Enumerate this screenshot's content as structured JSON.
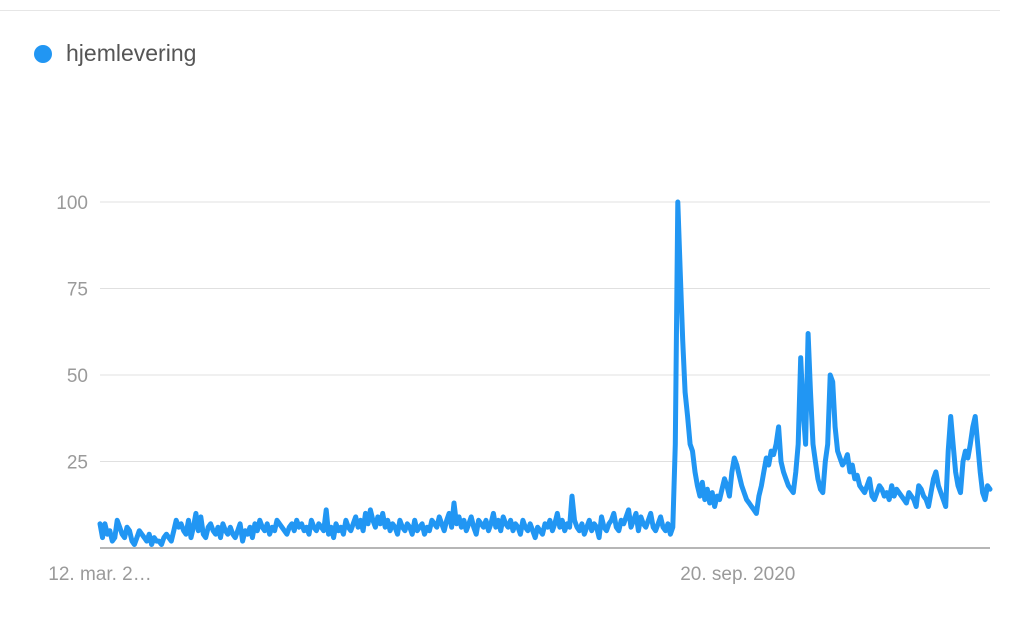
{
  "colors": {
    "series": "#2196f3",
    "grid": "#e0e0e0",
    "axis": "#9e9e9e"
  },
  "legend": {
    "icon": "circle-dot-icon",
    "label": "hjemlevering"
  },
  "chart_data": {
    "type": "line",
    "title": "",
    "xlabel": "",
    "ylabel": "",
    "ylim": [
      0,
      100
    ],
    "yticks": [
      100,
      75,
      50,
      25
    ],
    "grid": true,
    "legend": "top-left",
    "xticks": [
      {
        "index": 0,
        "label": "12. mar. 2…"
      },
      {
        "index": 236,
        "label": "20. sep. 2020"
      }
    ],
    "series": [
      {
        "name": "hjemlevering",
        "values": [
          7,
          3,
          7,
          4,
          5,
          2,
          3,
          8,
          6,
          4,
          3,
          6,
          5,
          2,
          1,
          3,
          5,
          4,
          3,
          2,
          4,
          1,
          3,
          2,
          2,
          1,
          3,
          4,
          3,
          2,
          5,
          8,
          6,
          7,
          5,
          4,
          8,
          3,
          6,
          10,
          5,
          9,
          4,
          3,
          6,
          7,
          5,
          4,
          6,
          3,
          7,
          5,
          4,
          6,
          4,
          3,
          5,
          7,
          2,
          5,
          4,
          6,
          3,
          7,
          5,
          8,
          6,
          5,
          7,
          4,
          6,
          5,
          8,
          7,
          6,
          5,
          4,
          6,
          7,
          5,
          8,
          6,
          7,
          5,
          6,
          4,
          8,
          6,
          5,
          7,
          6,
          5,
          11,
          4,
          6,
          3,
          7,
          5,
          6,
          4,
          8,
          6,
          5,
          7,
          9,
          6,
          8,
          5,
          10,
          7,
          11,
          8,
          6,
          9,
          7,
          10,
          6,
          8,
          5,
          7,
          6,
          4,
          8,
          6,
          5,
          7,
          6,
          4,
          8,
          5,
          6,
          7,
          4,
          6,
          5,
          8,
          7,
          6,
          9,
          7,
          5,
          8,
          10,
          6,
          13,
          7,
          9,
          6,
          8,
          5,
          7,
          9,
          6,
          4,
          8,
          7,
          6,
          8,
          5,
          7,
          10,
          6,
          8,
          5,
          9,
          7,
          6,
          8,
          5,
          7,
          6,
          4,
          8,
          6,
          5,
          7,
          5,
          3,
          6,
          5,
          4,
          7,
          6,
          8,
          5,
          7,
          10,
          6,
          8,
          5,
          7,
          6,
          15,
          8,
          6,
          5,
          7,
          4,
          6,
          8,
          5,
          7,
          6,
          3,
          9,
          6,
          5,
          7,
          8,
          10,
          6,
          5,
          8,
          7,
          9,
          11,
          6,
          8,
          10,
          5,
          9,
          7,
          6,
          8,
          10,
          6,
          5,
          7,
          9,
          6,
          5,
          7,
          4,
          6,
          30,
          100,
          80,
          60,
          45,
          38,
          30,
          28,
          22,
          18,
          15,
          19,
          14,
          17,
          13,
          16,
          12,
          15,
          14,
          17,
          20,
          18,
          15,
          22,
          26,
          24,
          21,
          18,
          16,
          14,
          13,
          12,
          11,
          10,
          15,
          18,
          22,
          26,
          24,
          28,
          27,
          30,
          35,
          25,
          22,
          20,
          18,
          17,
          16,
          22,
          30,
          55,
          40,
          30,
          62,
          45,
          30,
          25,
          20,
          17,
          16,
          25,
          30,
          50,
          48,
          35,
          28,
          26,
          24,
          25,
          27,
          22,
          24,
          20,
          21,
          18,
          17,
          16,
          18,
          20,
          15,
          14,
          16,
          18,
          17,
          15,
          16,
          14,
          18,
          15,
          17,
          16,
          15,
          14,
          13,
          16,
          15,
          14,
          12,
          18,
          17,
          15,
          14,
          12,
          16,
          20,
          22,
          18,
          16,
          14,
          12,
          28,
          38,
          30,
          22,
          18,
          16,
          25,
          28,
          26,
          30,
          35,
          38,
          30,
          22,
          16,
          14,
          18,
          17
        ]
      }
    ]
  }
}
